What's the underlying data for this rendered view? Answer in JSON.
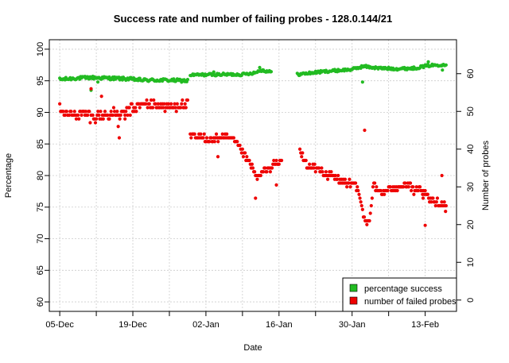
{
  "chart_data": {
    "type": "scatter",
    "title": "Success rate and number of failing probes - 128.0.144/21",
    "xlabel": "Date",
    "ylabel_left": "Percentage",
    "ylabel_right": "Number of probes",
    "x_start_date": "2024-12-03",
    "xlim_days": [
      0,
      78
    ],
    "ylim_left": [
      58.5,
      101.5
    ],
    "ylim_right": [
      -3,
      69
    ],
    "xticks": [
      {
        "day": 2,
        "label": "05-Dec"
      },
      {
        "day": 9,
        "label": ""
      },
      {
        "day": 16,
        "label": "19-Dec"
      },
      {
        "day": 23,
        "label": ""
      },
      {
        "day": 30,
        "label": "02-Jan"
      },
      {
        "day": 37,
        "label": ""
      },
      {
        "day": 44,
        "label": "16-Jan"
      },
      {
        "day": 51,
        "label": ""
      },
      {
        "day": 58,
        "label": "30-Jan"
      },
      {
        "day": 65,
        "label": ""
      },
      {
        "day": 72,
        "label": "13-Feb"
      }
    ],
    "yticks_left": [
      60,
      65,
      70,
      75,
      80,
      85,
      90,
      95,
      100
    ],
    "yticks_right": [
      0,
      10,
      20,
      30,
      40,
      50,
      60
    ],
    "grid": true,
    "legend_position": "bottom-right",
    "series": [
      {
        "name": "percentage success",
        "axis": "left",
        "color": "#22bb22",
        "segments": [
          {
            "x0": 2.0,
            "x1": 26.6,
            "baseline": [
              [
                2,
                95.2
              ],
              [
                5,
                95.4
              ],
              [
                8,
                95.5
              ],
              [
                12,
                95.4
              ],
              [
                15,
                95.3
              ],
              [
                18,
                95.1
              ],
              [
                22,
                95.1
              ],
              [
                26.6,
                95.0
              ]
            ],
            "jitter": 0.25,
            "outliers": [
              [
                8.0,
                93.5
              ],
              [
                9.3,
                94.8
              ]
            ]
          },
          {
            "x0": 27.0,
            "x1": 42.5,
            "baseline": [
              [
                27,
                95.9
              ],
              [
                32,
                96.0
              ],
              [
                37,
                96.0
              ],
              [
                39.5,
                96.3
              ],
              [
                40.5,
                96.7
              ],
              [
                42.5,
                96.4
              ]
            ],
            "jitter": 0.2,
            "outliers": [
              [
                31.5,
                96.4
              ],
              [
                40.3,
                97.1
              ]
            ]
          },
          {
            "x0": 47.5,
            "x1": 76.0,
            "baseline": [
              [
                47.5,
                96.0
              ],
              [
                53,
                96.5
              ],
              [
                58,
                96.8
              ],
              [
                60.2,
                97.3
              ],
              [
                63,
                97.0
              ],
              [
                67,
                96.9
              ],
              [
                70,
                97.0
              ],
              [
                72.5,
                97.4
              ],
              [
                76,
                97.6
              ]
            ],
            "jitter": 0.2,
            "outliers": [
              [
                60.0,
                94.8
              ],
              [
                69.5,
                97.1
              ],
              [
                72.6,
                98.0
              ],
              [
                75.3,
                96.7
              ]
            ]
          }
        ]
      },
      {
        "name": "number of failed probes",
        "axis": "right",
        "color": "#ee0000",
        "segments": [
          {
            "x0": 2.0,
            "x1": 26.6,
            "baseline": [
              [
                2,
                51.0
              ],
              [
                4,
                49.0
              ],
              [
                6,
                49.5
              ],
              [
                8,
                48.5
              ],
              [
                10,
                49.0
              ],
              [
                12,
                49.5
              ],
              [
                14,
                49.0
              ],
              [
                15,
                50.0
              ],
              [
                18,
                52.0
              ],
              [
                21,
                51.5
              ],
              [
                23,
                51.0
              ],
              [
                25,
                52.0
              ],
              [
                26.6,
                51.5
              ]
            ],
            "jitter": 1.3,
            "outliers": [
              [
                8.0,
                56.0
              ],
              [
                10.0,
                54.0
              ],
              [
                13.2,
                46.0
              ],
              [
                13.4,
                43.0
              ],
              [
                14.5,
                48.0
              ]
            ]
          },
          {
            "x0": 27.0,
            "x1": 44.5,
            "baseline": [
              [
                27,
                43.5
              ],
              [
                31,
                42.5
              ],
              [
                33,
                43.0
              ],
              [
                35,
                42.5
              ],
              [
                36,
                41.5
              ],
              [
                37,
                39.0
              ],
              [
                38,
                37.0
              ],
              [
                39,
                34.5
              ],
              [
                40,
                32.0
              ],
              [
                41,
                34.0
              ],
              [
                42,
                35.0
              ],
              [
                43.5,
                36.0
              ],
              [
                44.5,
                37.0
              ]
            ],
            "jitter": 1.0,
            "outliers": [
              [
                32.3,
                38.0
              ],
              [
                39.5,
                27.0
              ],
              [
                43.5,
                30.5
              ]
            ]
          },
          {
            "x0": 48.0,
            "x1": 76.0,
            "baseline": [
              [
                48,
                40.0
              ],
              [
                49,
                36.0
              ],
              [
                51,
                35.0
              ],
              [
                53,
                33.5
              ],
              [
                55,
                32.0
              ],
              [
                57,
                31.0
              ],
              [
                59,
                30.0
              ],
              [
                60.3,
                22.0
              ],
              [
                61.3,
                20.5
              ],
              [
                62,
                30.0
              ],
              [
                63,
                29.0
              ],
              [
                64,
                28.5
              ],
              [
                66,
                30.0
              ],
              [
                69,
                30.5
              ],
              [
                70,
                28.5
              ],
              [
                71,
                29.0
              ],
              [
                72,
                28.0
              ],
              [
                73,
                26.5
              ],
              [
                74,
                26.0
              ],
              [
                75,
                25.5
              ],
              [
                76,
                25.0
              ]
            ],
            "jitter": 1.0,
            "outliers": [
              [
                60.4,
                45.0
              ],
              [
                72.0,
                19.8
              ],
              [
                71.6,
                27.0
              ],
              [
                75.2,
                33.0
              ],
              [
                75.9,
                23.5
              ]
            ]
          }
        ]
      }
    ]
  }
}
